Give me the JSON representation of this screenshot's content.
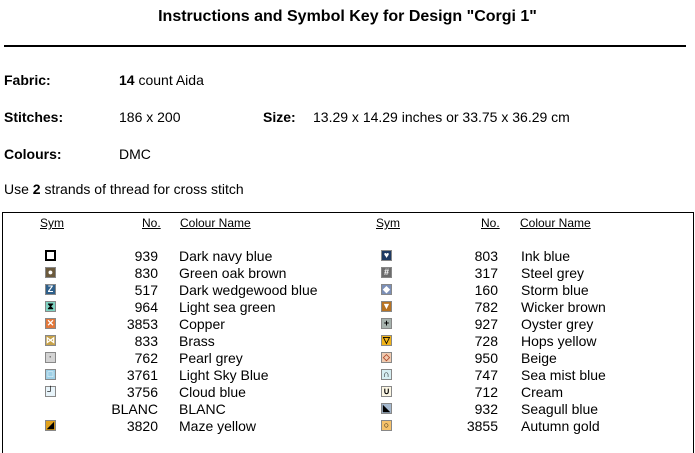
{
  "title": "Instructions and Symbol Key for Design \"Corgi 1\"",
  "fabric": {
    "label": "Fabric:",
    "count": "14",
    "text": " count Aida"
  },
  "stitches": {
    "label": "Stitches:",
    "value": "186 x 200"
  },
  "size": {
    "label": "Size:",
    "value": "13.29 x 14.29 inches or 33.75 x 36.29 cm"
  },
  "colours": {
    "label": "Colours:",
    "value": "DMC"
  },
  "strands": {
    "pre": "Use ",
    "num": "2",
    "post": " strands of thread for cross stitch"
  },
  "table": {
    "headers": {
      "sym": "Sym",
      "no": "No.",
      "name": "Colour Name"
    },
    "left": [
      {
        "no": "939",
        "name": "Dark navy blue",
        "icon": "hollow-square-icon",
        "bg": "#ffffff",
        "fg": "#000000",
        "glyph": ""
      },
      {
        "no": "830",
        "name": "Green oak brown",
        "icon": "circle-on-brown-icon",
        "bg": "#6b5a3c",
        "fg": "#ffffff",
        "glyph": "●"
      },
      {
        "no": "517",
        "name": "Dark wedgewood blue",
        "icon": "z-on-blue-icon",
        "bg": "#2e5f8a",
        "fg": "#ffffff",
        "glyph": "Z"
      },
      {
        "no": "964",
        "name": "Light sea green",
        "icon": "hourglass-icon",
        "bg": "#7fd3c2",
        "fg": "#000000",
        "glyph": "⧗"
      },
      {
        "no": "3853",
        "name": "Copper",
        "icon": "x-on-orange-icon",
        "bg": "#e2773a",
        "fg": "#ffffff",
        "glyph": "✕"
      },
      {
        "no": "833",
        "name": "Brass",
        "icon": "bowtie-icon",
        "bg": "#c7a24a",
        "fg": "#ffffff",
        "glyph": "⋈"
      },
      {
        "no": "762",
        "name": "Pearl grey",
        "icon": "dot-on-grey-icon",
        "bg": "#d3d3d3",
        "fg": "#666666",
        "glyph": "·"
      },
      {
        "no": "3761",
        "name": "Light Sky Blue",
        "icon": "square-on-skyblue-icon",
        "bg": "#9fd0e6",
        "fg": "#ffffff",
        "glyph": "□"
      },
      {
        "no": "3756",
        "name": "Cloud blue",
        "icon": "corner-icon",
        "bg": "#e8f4fa",
        "fg": "#000000",
        "glyph": "┘"
      },
      {
        "no": "BLANC",
        "name": "BLANC",
        "icon": "",
        "bg": "",
        "fg": "",
        "glyph": ""
      },
      {
        "no": "3820",
        "name": "Maze yellow",
        "icon": "triangle-on-yellow-icon",
        "bg": "#e2a21c",
        "fg": "#000000",
        "glyph": "◢"
      }
    ],
    "right": [
      {
        "no": "803",
        "name": "Ink blue",
        "icon": "heart-on-navy-icon",
        "bg": "#1f3a63",
        "fg": "#ffffff",
        "glyph": "♥"
      },
      {
        "no": "317",
        "name": "Steel grey",
        "icon": "hash-on-grey-icon",
        "bg": "#6c6c6c",
        "fg": "#ffffff",
        "glyph": "#"
      },
      {
        "no": "160",
        "name": "Storm blue",
        "icon": "diamond-on-blue-icon",
        "bg": "#7b8fb7",
        "fg": "#ffffff",
        "glyph": "◆"
      },
      {
        "no": "782",
        "name": "Wicker brown",
        "icon": "triangle-on-brown-icon",
        "bg": "#b87322",
        "fg": "#ffffff",
        "glyph": "▼"
      },
      {
        "no": "927",
        "name": "Oyster grey",
        "icon": "plus-on-grey-icon",
        "bg": "#a7b3ae",
        "fg": "#000000",
        "glyph": "+"
      },
      {
        "no": "728",
        "name": "Hops yellow",
        "icon": "triangle-on-yellow-icon",
        "bg": "#f2b418",
        "fg": "#000000",
        "glyph": "▽"
      },
      {
        "no": "950",
        "name": "Beige",
        "icon": "diamond-on-beige-icon",
        "bg": "#f0cbb0",
        "fg": "#b04a2a",
        "glyph": "◇"
      },
      {
        "no": "747",
        "name": "Sea mist blue",
        "icon": "arch-on-mist-icon",
        "bg": "#d6eef2",
        "fg": "#000000",
        "glyph": "∩"
      },
      {
        "no": "712",
        "name": "Cream",
        "icon": "cup-on-cream-icon",
        "bg": "#fbf6e4",
        "fg": "#000000",
        "glyph": "∪"
      },
      {
        "no": "932",
        "name": "Seagull blue",
        "icon": "triangle-on-blue-icon",
        "bg": "#a5b9cf",
        "fg": "#000000",
        "glyph": "◣"
      },
      {
        "no": "3855",
        "name": "Autumn gold",
        "icon": "circle-on-gold-icon",
        "bg": "#f6c26b",
        "fg": "#000000",
        "glyph": "○"
      }
    ]
  }
}
